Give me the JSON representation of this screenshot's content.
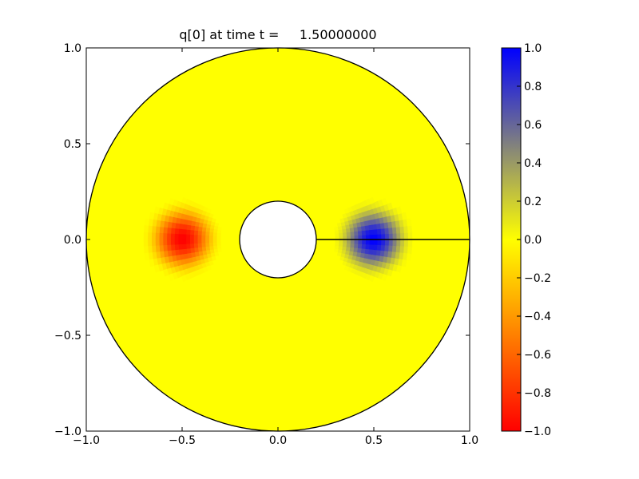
{
  "chart_data": {
    "type": "heatmap",
    "title": "q[0] at time t =     1.50000000",
    "xlim": [
      -1.0,
      1.0
    ],
    "ylim": [
      -1.0,
      1.0
    ],
    "x_ticks": [
      "−1.0",
      "−0.5",
      "0.0",
      "0.5",
      "1.0"
    ],
    "x_tick_values": [
      -1.0,
      -0.5,
      0.0,
      0.5,
      1.0
    ],
    "y_ticks": [
      "−1.0",
      "−0.5",
      "0.0",
      "0.5",
      "1.0"
    ],
    "y_tick_values": [
      -1.0,
      -0.5,
      0.0,
      0.5,
      1.0
    ],
    "domain": {
      "shape": "annulus",
      "outer_radius": 1.0,
      "inner_radius": 0.2
    },
    "cut_line": {
      "from": [
        0.2,
        0.0
      ],
      "to": [
        1.0,
        0.0
      ]
    },
    "field_background": 0.0,
    "blobs": [
      {
        "center": [
          -0.5,
          0.0
        ],
        "peak": -1.0,
        "radius": 0.22
      },
      {
        "center": [
          0.5,
          0.0
        ],
        "peak": 1.0,
        "radius": 0.22
      }
    ],
    "colorbar": {
      "range": [
        -1.0,
        1.0
      ],
      "ticks": [
        "−1.0",
        "−0.8",
        "−0.6",
        "−0.4",
        "−0.2",
        "0.0",
        "0.2",
        "0.4",
        "0.6",
        "0.8",
        "1.0"
      ],
      "tick_values": [
        -1.0,
        -0.8,
        -0.6,
        -0.4,
        -0.2,
        0.0,
        0.2,
        0.4,
        0.6,
        0.8,
        1.0
      ],
      "colors": {
        "min": "#ff0000",
        "mid": "#ffff00",
        "max": "#0000ff"
      }
    },
    "grid": false
  }
}
